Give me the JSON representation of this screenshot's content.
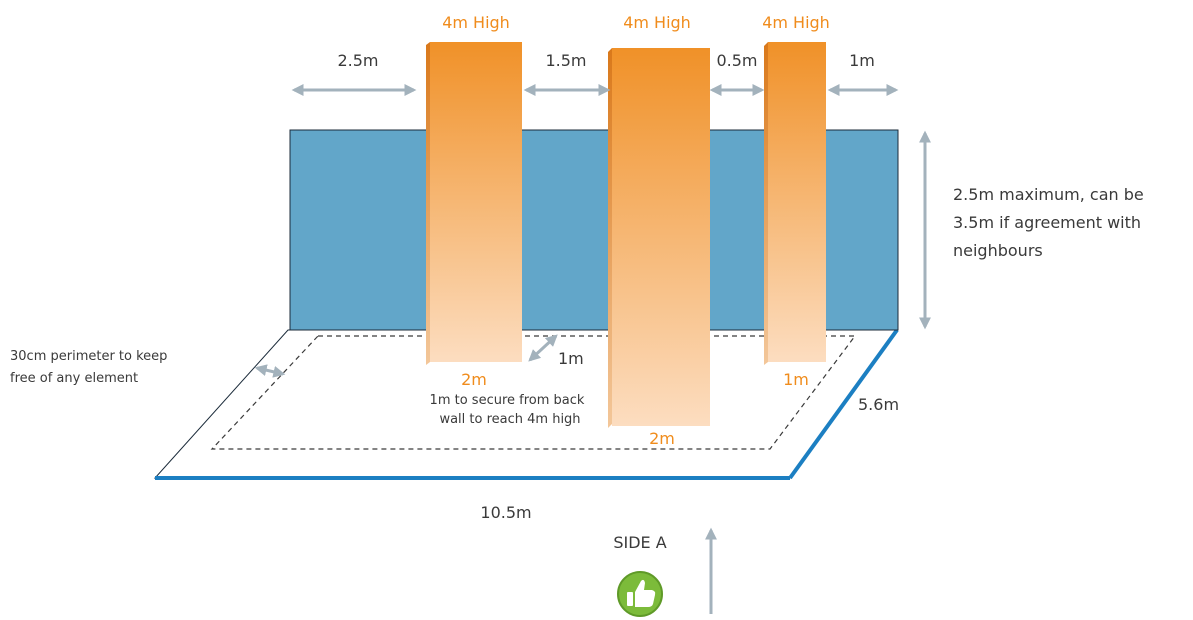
{
  "colors": {
    "wall_fill": "#62a6c9",
    "wall_stroke": "#1b2b3a",
    "floor_edge": "#1c7fc2",
    "column_top": "#f09128",
    "column_bottom": "#fcddc0",
    "arrow": "#a3b2bc",
    "orange_text": "#f08c1c",
    "thumb_green": "#7cbb3a"
  },
  "columns": [
    {
      "height_label": "4m High",
      "width_label": "2m"
    },
    {
      "height_label": "4m High",
      "width_label": "2m"
    },
    {
      "height_label": "4m High",
      "width_label": "1m"
    }
  ],
  "spacing": {
    "left_gap": "2.5m",
    "gap_1_2": "1.5m",
    "gap_2_3": "0.5m",
    "right_gap": "1m"
  },
  "wall_height_note": {
    "line1": "2.5m maximum, can be",
    "line2": "3.5m if agreement with",
    "line3": "neighbours"
  },
  "perimeter_note": {
    "line1": "30cm perimeter to keep",
    "line2": "free of any element"
  },
  "back_wall_distance": "1m",
  "secure_note": {
    "line1": "1m to secure from back",
    "line2": "wall to reach 4m high"
  },
  "floor_depth": "5.6m",
  "floor_width": "10.5m",
  "side_label": "SIDE A",
  "icons": {
    "thumb": "thumbs-up-icon",
    "side_arrow": "arrow-up-icon"
  }
}
